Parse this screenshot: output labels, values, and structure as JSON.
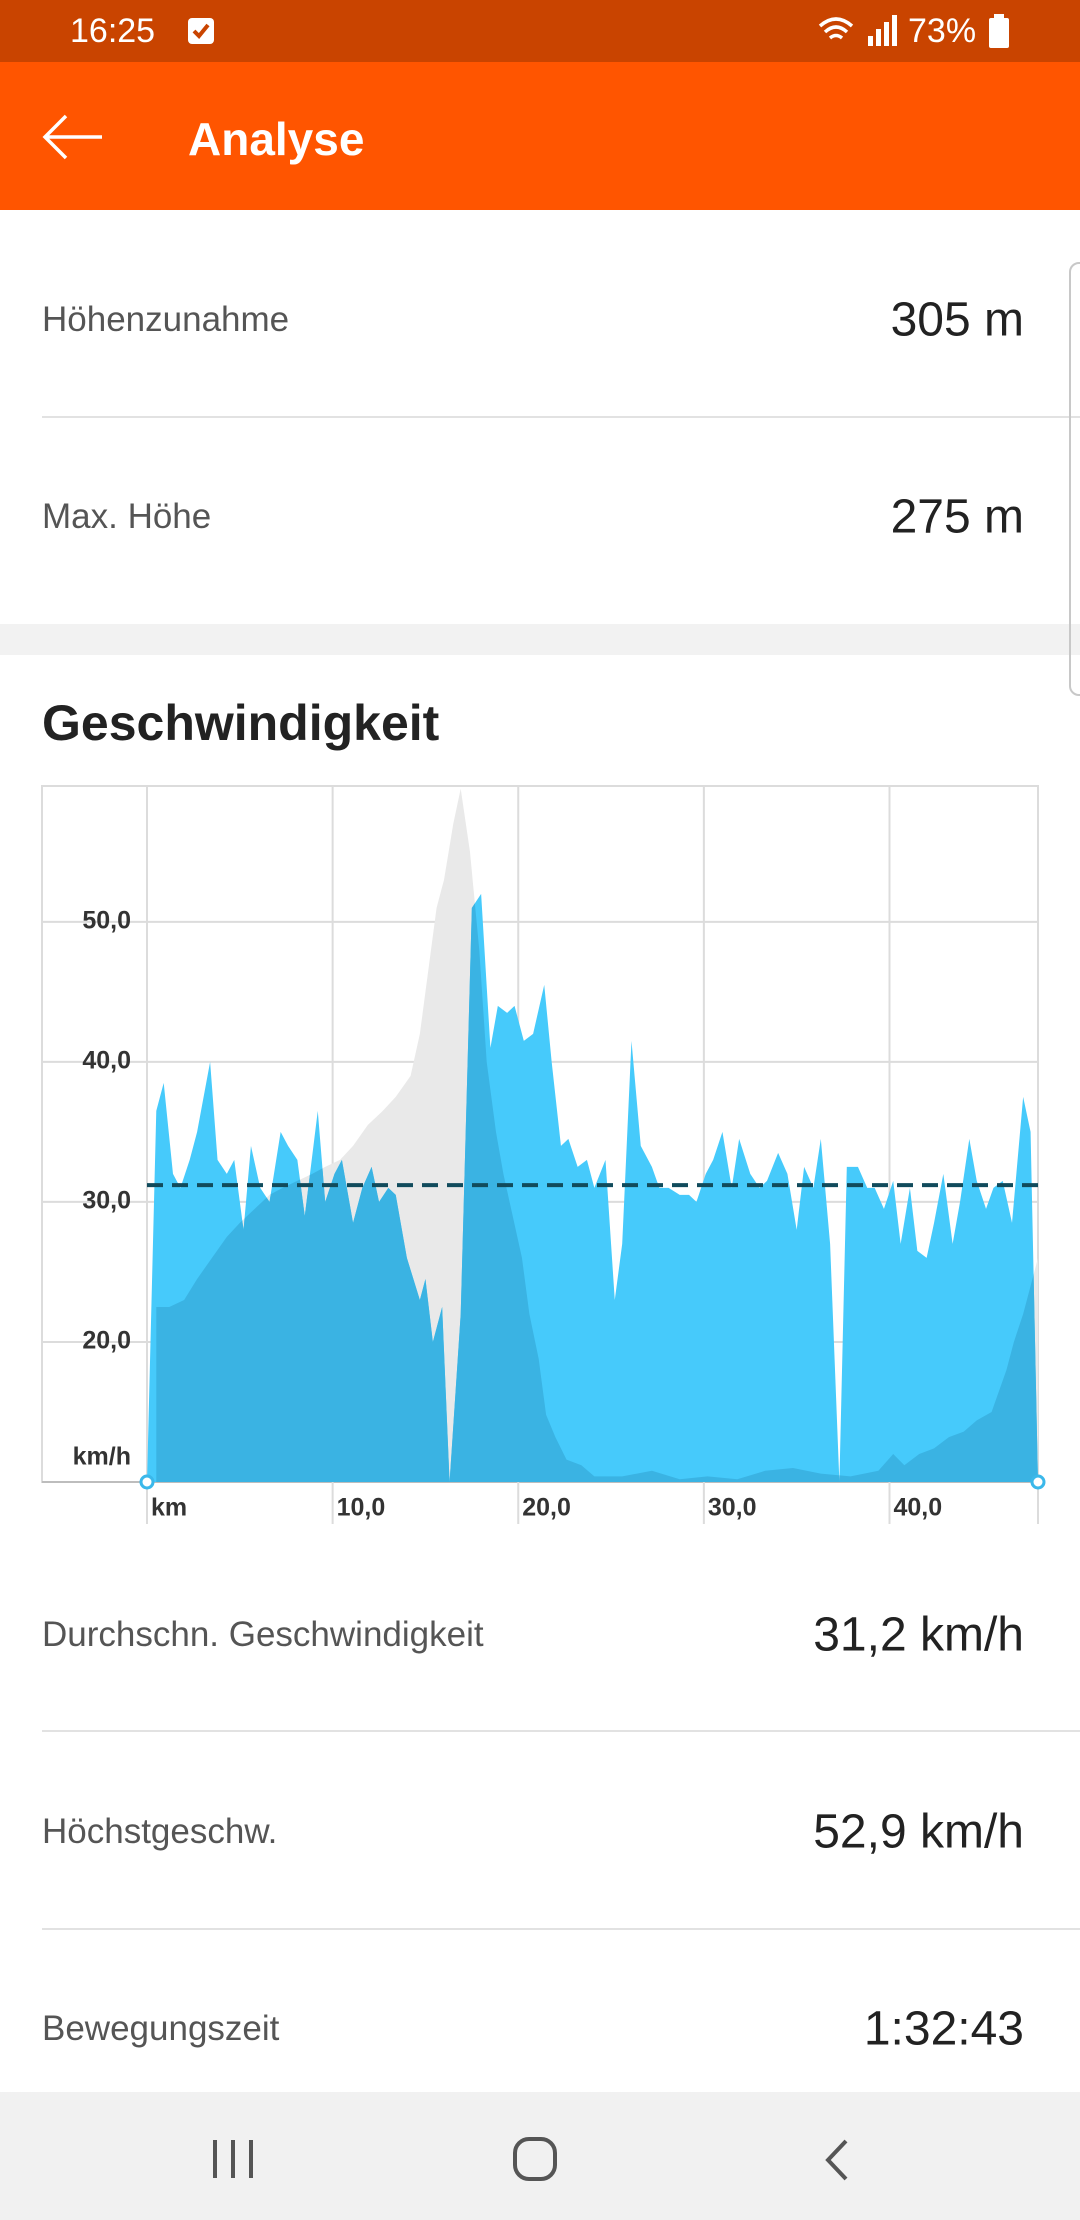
{
  "status_bar": {
    "time": "16:25",
    "battery": "73%"
  },
  "app_bar": {
    "title": "Analyse"
  },
  "stats_top": [
    {
      "label": "Höhenzunahme",
      "value": "305 m"
    },
    {
      "label": "Max. Höhe",
      "value": "275 m"
    }
  ],
  "chart_data": {
    "type": "area",
    "title": "Geschwindigkeit",
    "series": [
      {
        "color": "#e9e9e9",
        "x": [
          0.5,
          1.2,
          2.0,
          2.7,
          3.5,
          4.3,
          5.0,
          5.8,
          6.6,
          7.3,
          8.1,
          8.9,
          9.6,
          10.4,
          11.1,
          11.9,
          12.7,
          13.4,
          14.2,
          14.7,
          15.1,
          15.6,
          16.0,
          16.5,
          16.9,
          17.4,
          17.9,
          18.3,
          18.8,
          19.2,
          19.7,
          20.2,
          20.6,
          21.1,
          21.5,
          22.0,
          22.6,
          23.4,
          24.1,
          25.6,
          27.2,
          28.7,
          30.2,
          31.8,
          33.3,
          34.8,
          36.3,
          37.9,
          39.4,
          40.2,
          40.8,
          41.6,
          42.4,
          43.2,
          44.0,
          44.7,
          45.5,
          46.3,
          46.7,
          47.2,
          47.6,
          48.0
        ],
        "values": [
          22.5,
          22.5,
          23,
          24.5,
          26,
          27.5,
          28.5,
          29.5,
          30.5,
          31,
          31.5,
          32,
          32.5,
          33,
          34,
          35.5,
          36.5,
          37.5,
          39,
          42,
          46,
          51,
          53,
          57,
          59.5,
          55,
          48,
          40,
          35,
          32,
          29,
          26,
          22,
          18.8,
          14.8,
          13.2,
          11.6,
          11.2,
          10.4,
          10.4,
          10.8,
          10.2,
          10.4,
          10.2,
          10.8,
          11,
          10.6,
          10.4,
          10.8,
          12,
          11.2,
          12,
          12.4,
          13.2,
          13.6,
          14.4,
          15,
          18,
          20,
          22,
          24,
          26
        ]
      },
      {
        "color": "#46cafb",
        "x": [
          0,
          0.5,
          0.9,
          1.4,
          1.8,
          2.3,
          2.7,
          3.4,
          3.8,
          4.3,
          4.7,
          5.2,
          5.6,
          6.1,
          6.6,
          7.2,
          7.6,
          8.1,
          8.5,
          9.2,
          9.6,
          10.1,
          10.5,
          11.1,
          11.6,
          12.1,
          12.5,
          13.0,
          13.4,
          14.0,
          14.7,
          15.0,
          15.4,
          15.9,
          16.3,
          16.9,
          17.5,
          18.0,
          18.5,
          18.9,
          19.4,
          19.8,
          20.3,
          20.8,
          21.4,
          21.8,
          22.3,
          22.7,
          23.2,
          23.7,
          24.1,
          24.7,
          25.2,
          25.6,
          26.1,
          26.6,
          27.2,
          27.6,
          28.1,
          28.7,
          29.2,
          29.6,
          30.1,
          30.5,
          31.0,
          31.5,
          31.9,
          32.5,
          33.0,
          33.4,
          34.0,
          34.5,
          35.0,
          35.4,
          35.9,
          36.3,
          36.8,
          37.3,
          37.7,
          38.3,
          38.8,
          39.2,
          39.7,
          40.2,
          40.6,
          41.1,
          41.5,
          42.0,
          42.4,
          42.9,
          43.4,
          43.8,
          44.3,
          44.7,
          45.2,
          45.6,
          46.1,
          46.6,
          47.2,
          47.6,
          48.0
        ],
        "values": [
          10,
          36.5,
          38.5,
          32,
          31,
          33,
          35,
          40,
          33,
          32,
          33,
          28,
          34,
          31,
          30,
          35,
          34,
          33,
          29,
          36.5,
          30,
          32,
          33,
          28.5,
          31,
          32.5,
          30,
          31,
          30.5,
          26,
          23,
          24.5,
          20,
          22.5,
          10,
          22,
          51,
          52,
          41,
          44,
          43.5,
          44,
          41.5,
          42,
          45.5,
          40,
          34,
          34.5,
          32.5,
          33,
          31,
          33,
          23,
          27,
          41.5,
          34,
          32.5,
          31,
          31,
          30.5,
          30.5,
          30,
          32,
          33,
          35,
          31,
          34.5,
          32,
          31,
          31.5,
          33.5,
          32,
          28,
          32.5,
          31,
          34.5,
          27,
          10,
          32.5,
          32.5,
          31,
          31,
          29.5,
          31.5,
          27,
          31,
          26.5,
          26,
          28.5,
          32,
          27,
          30,
          34.5,
          31.5,
          29.5,
          31,
          31.5,
          28.5,
          37.5,
          35,
          10
        ]
      }
    ],
    "overlap_color": "#3ab3e3",
    "average": 31.2,
    "average_color": "#114b5c",
    "xlim": [
      0,
      48
    ],
    "xticks": [
      {
        "value": 0,
        "label": "km"
      },
      {
        "value": 10,
        "label": "10,0"
      },
      {
        "value": 20,
        "label": "20,0"
      },
      {
        "value": 30,
        "label": "30,0"
      },
      {
        "value": 40,
        "label": "40,0"
      }
    ],
    "ylim": [
      10,
      59.7
    ],
    "yticks": [
      {
        "value": 10,
        "label": "km/h"
      },
      {
        "value": 20,
        "label": "20,0"
      },
      {
        "value": 30,
        "label": "30,0"
      },
      {
        "value": 40,
        "label": "40,0"
      },
      {
        "value": 50,
        "label": "50,0"
      }
    ],
    "grid": true
  },
  "stats_bottom": [
    {
      "label": "Durchschn. Geschwindigkeit",
      "value": "31,2 km/h"
    },
    {
      "label": "Höchstgeschw.",
      "value": "52,9 km/h"
    },
    {
      "label": "Bewegungszeit",
      "value": "1:32:43"
    }
  ]
}
